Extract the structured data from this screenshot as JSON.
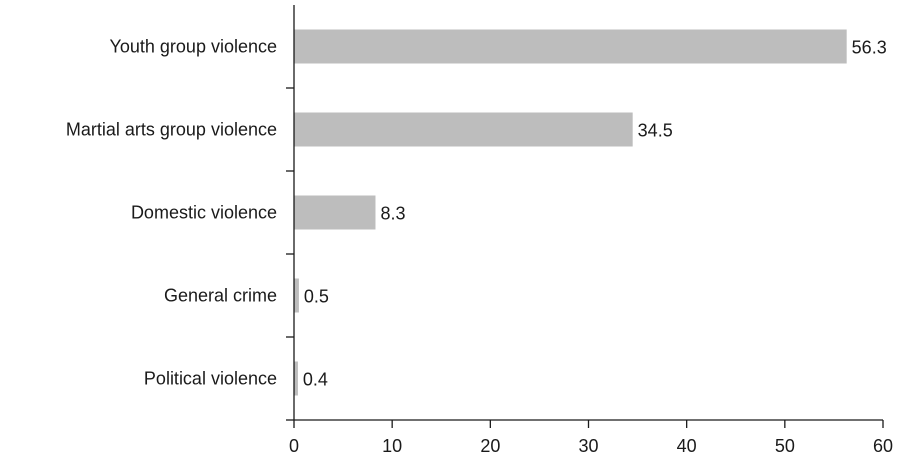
{
  "chart_data": {
    "type": "bar",
    "orientation": "horizontal",
    "categories": [
      "Youth group violence",
      "Martial arts group violence",
      "Domestic violence",
      "General crime",
      "Political violence"
    ],
    "values": [
      56.3,
      34.5,
      8.3,
      0.5,
      0.4
    ],
    "value_labels": [
      "56.3",
      "34.5",
      "8.3",
      "0.5",
      "0.4"
    ],
    "xlim": [
      0,
      60
    ],
    "x_ticks": [
      0,
      10,
      20,
      30,
      40,
      50,
      60
    ],
    "x_tick_labels": [
      "0",
      "10",
      "20",
      "30",
      "40",
      "50",
      "60"
    ],
    "title": "",
    "xlabel": "",
    "ylabel": "",
    "grid": false,
    "bar_color": "#bdbdbd",
    "axis_color": "#1a1a1a"
  }
}
